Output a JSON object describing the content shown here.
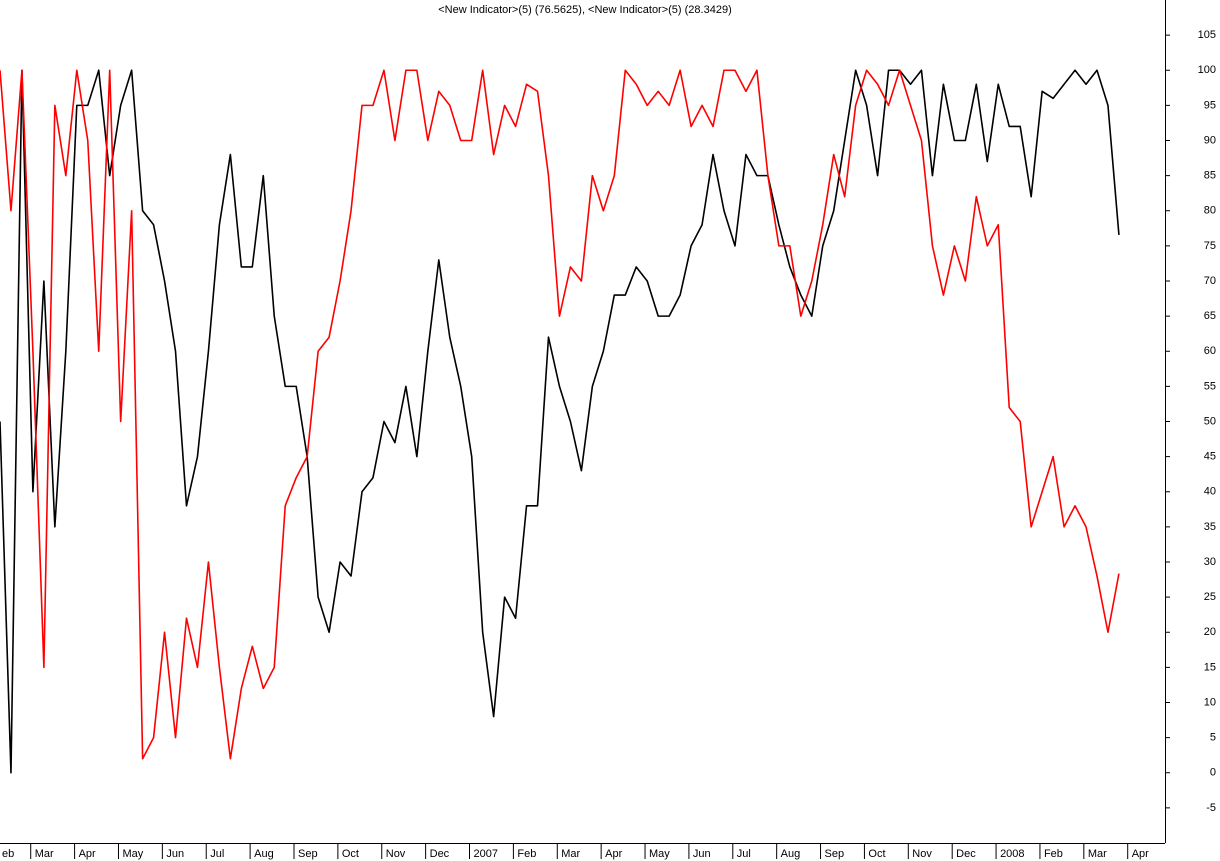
{
  "chart_data": {
    "type": "line",
    "title": "<New Indicator>(5) (76.5625), <New Indicator>(5) (28.3429)",
    "x": [
      0.3,
      0.55,
      0.8,
      1.05,
      1.3,
      1.55,
      1.8,
      2.05,
      2.3,
      2.55,
      2.8,
      3.05,
      3.3,
      3.55,
      3.8,
      4.05,
      4.3,
      4.55,
      4.8,
      5.05,
      5.3,
      5.55,
      5.8,
      6.05,
      6.3,
      6.55,
      6.8,
      7.05,
      7.3,
      7.55,
      7.8,
      8.05,
      8.3,
      8.55,
      8.8,
      9.05,
      9.3,
      9.55,
      9.8,
      10.05,
      10.3,
      10.55,
      10.8,
      11.05,
      11.3,
      11.55,
      11.8,
      12.05,
      12.3,
      12.55,
      12.8,
      13.05,
      13.3,
      13.55,
      13.8,
      14.05,
      14.3,
      14.55,
      14.8,
      15.05,
      15.3,
      15.55,
      15.8,
      16.05,
      16.3,
      16.55,
      16.8,
      17.05,
      17.3,
      17.55,
      17.8,
      18.05,
      18.3,
      18.55,
      18.8,
      19.05,
      19.3,
      19.55,
      19.8,
      20.05,
      20.3,
      20.55,
      20.8,
      21.05,
      21.3,
      21.55,
      21.8,
      22.05,
      22.3,
      22.55,
      22.8,
      23.05,
      23.3,
      23.55,
      23.8,
      24.05,
      24.3,
      24.55,
      24.8,
      25.05,
      25.3,
      25.55,
      25.8
    ],
    "series": [
      {
        "color": "#000000",
        "values": [
          50,
          0,
          100,
          40,
          70,
          35,
          60,
          95,
          95,
          100,
          85,
          95,
          100,
          80,
          78,
          70,
          60,
          38,
          45,
          60,
          78,
          88,
          72,
          72,
          85,
          65,
          55,
          55,
          45,
          25,
          20,
          30,
          28,
          40,
          42,
          50,
          47,
          55,
          45,
          60,
          73,
          62,
          55,
          45,
          20,
          8,
          25,
          22,
          38,
          38,
          62,
          55,
          50,
          43,
          55,
          60,
          68,
          68,
          72,
          70,
          65,
          65,
          68,
          75,
          78,
          88,
          80,
          75,
          88,
          85,
          85,
          78,
          72,
          68,
          65,
          75,
          80,
          90,
          100,
          95,
          85,
          100,
          100,
          98,
          100,
          85,
          98,
          90,
          90,
          98,
          87,
          98,
          92,
          92,
          82,
          97,
          96,
          98,
          100,
          98,
          100,
          95,
          76.5625
        ]
      },
      {
        "color": "#ff0000",
        "values": [
          100,
          80,
          100,
          60,
          15,
          95,
          85,
          100,
          90,
          60,
          100,
          50,
          80,
          2,
          5,
          20,
          5,
          22,
          15,
          30,
          15,
          2,
          12,
          18,
          12,
          15,
          38,
          42,
          45,
          60,
          62,
          70,
          80,
          95,
          95,
          100,
          90,
          100,
          100,
          90,
          97,
          95,
          90,
          90,
          100,
          88,
          95,
          92,
          98,
          97,
          85,
          65,
          72,
          70,
          85,
          80,
          85,
          100,
          98,
          95,
          97,
          95,
          100,
          92,
          95,
          92,
          100,
          100,
          97,
          100,
          85,
          75,
          75,
          65,
          70,
          78,
          88,
          82,
          95,
          100,
          98,
          95,
          100,
          95,
          90,
          75,
          68,
          75,
          70,
          82,
          75,
          78,
          52,
          50,
          35,
          40,
          45,
          35,
          38,
          35,
          28,
          20,
          28.3429
        ]
      }
    ],
    "xlim": [
      0.3,
      26.85
    ],
    "xticks": [
      {
        "value": 0,
        "label": "eb"
      },
      {
        "value": 1,
        "label": "Mar"
      },
      {
        "value": 2,
        "label": "Apr"
      },
      {
        "value": 3,
        "label": "May"
      },
      {
        "value": 4,
        "label": "Jun"
      },
      {
        "value": 5,
        "label": "Jul"
      },
      {
        "value": 6,
        "label": "Aug"
      },
      {
        "value": 7,
        "label": "Sep"
      },
      {
        "value": 8,
        "label": "Oct"
      },
      {
        "value": 9,
        "label": "Nov"
      },
      {
        "value": 10,
        "label": "Dec"
      },
      {
        "value": 11,
        "label": "2007"
      },
      {
        "value": 12,
        "label": "Feb"
      },
      {
        "value": 13,
        "label": "Mar"
      },
      {
        "value": 14,
        "label": "Apr"
      },
      {
        "value": 15,
        "label": "May"
      },
      {
        "value": 16,
        "label": "Jun"
      },
      {
        "value": 17,
        "label": "Jul"
      },
      {
        "value": 18,
        "label": "Aug"
      },
      {
        "value": 19,
        "label": "Sep"
      },
      {
        "value": 20,
        "label": "Oct"
      },
      {
        "value": 21,
        "label": "Nov"
      },
      {
        "value": 22,
        "label": "Dec"
      },
      {
        "value": 23,
        "label": "2008"
      },
      {
        "value": 24,
        "label": "Feb"
      },
      {
        "value": 25,
        "label": "Mar"
      },
      {
        "value": 26,
        "label": "Apr"
      }
    ],
    "ylim": [
      -10,
      110
    ],
    "yticks": [
      -5,
      0,
      5,
      10,
      15,
      20,
      25,
      30,
      35,
      40,
      45,
      50,
      55,
      60,
      65,
      70,
      75,
      80,
      85,
      90,
      95,
      100,
      105
    ],
    "grid": false
  }
}
